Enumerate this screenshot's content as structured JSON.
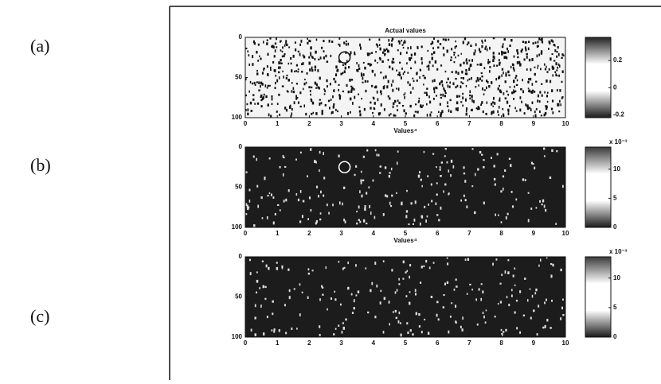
{
  "panel_labels": [
    "(a)",
    "(b)",
    "(c)"
  ],
  "chart_data": [
    {
      "type": "heatmap",
      "title": "Actual values",
      "xlabel": "Values⁴",
      "background": "#f4f4f4",
      "speckle": "#111111",
      "xlim": [
        0,
        10
      ],
      "xticks": [
        0,
        1,
        2,
        3,
        4,
        5,
        6,
        7,
        8,
        9,
        10
      ],
      "ylim": [
        0,
        100
      ],
      "yticks": [
        0,
        50,
        100
      ],
      "marker": {
        "x": 3.1,
        "y": 25,
        "color": "#111111"
      },
      "colorbar": {
        "clim": [
          -0.22,
          0.37
        ],
        "ticks": [
          0.2,
          0,
          -0.2
        ],
        "colors": [
          "#222222",
          "#ffffff",
          "#ffffff",
          "#1a1a1a"
        ]
      }
    },
    {
      "type": "heatmap",
      "xlabel": "Values⁴",
      "background": "#1c1c1c",
      "speckle": "#dddddd",
      "xlim": [
        0,
        10
      ],
      "xticks": [
        0,
        1,
        2,
        3,
        4,
        5,
        6,
        7,
        8,
        9,
        10
      ],
      "ylim": [
        0,
        100
      ],
      "yticks": [
        0,
        50,
        100
      ],
      "marker": {
        "x": 3.1,
        "y": 25,
        "color": "#ffffff"
      },
      "colorbar": {
        "clim": [
          0,
          13.8
        ],
        "ticks": [
          10,
          5,
          0
        ],
        "scale_label": "x 10⁻³",
        "colors": [
          "#3a3a3a",
          "#ffffff",
          "#ffffff",
          "#1a1a1a"
        ]
      }
    },
    {
      "type": "heatmap",
      "background": "#1c1c1c",
      "speckle": "#dddddd",
      "xlim": [
        0,
        10
      ],
      "xticks": [
        0,
        1,
        2,
        3,
        4,
        5,
        6,
        7,
        8,
        9,
        10
      ],
      "ylim": [
        0,
        100
      ],
      "yticks": [
        0,
        50,
        100
      ],
      "colorbar": {
        "clim": [
          0,
          13.6
        ],
        "ticks": [
          10,
          5,
          0
        ],
        "scale_label": "x 10⁻³",
        "colors": [
          "#3a3a3a",
          "#ffffff",
          "#ffffff",
          "#1a1a1a"
        ]
      }
    }
  ]
}
